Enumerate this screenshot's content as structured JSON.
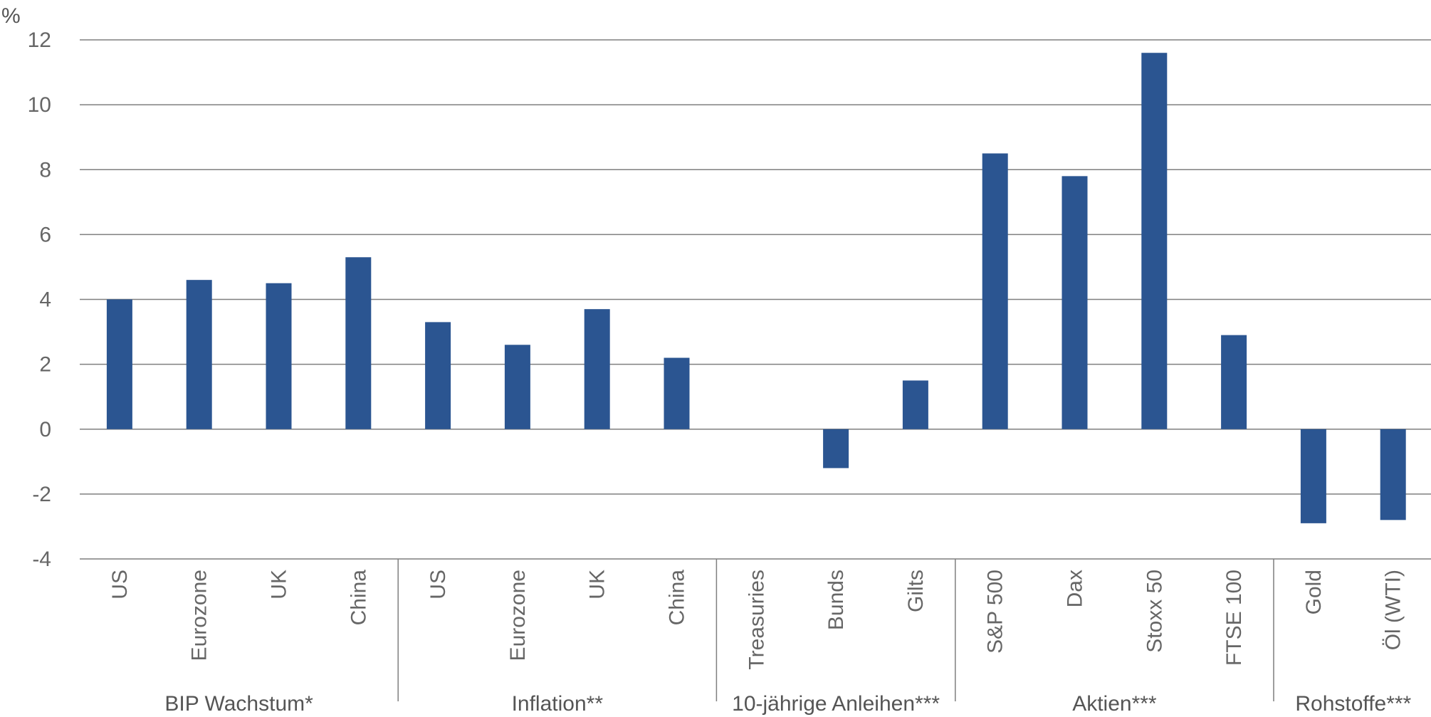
{
  "chart_data": {
    "type": "bar",
    "ylabel": "%",
    "ylim": [
      -4,
      12
    ],
    "yticks": [
      "12",
      "10",
      "8",
      "6",
      "4",
      "2",
      "0",
      "-2",
      "-4"
    ],
    "grid": true,
    "bar_color": "#2b5591",
    "grid_color": "#7f7f7f",
    "groups": [
      {
        "label": "BIP Wachstum*",
        "categories": [
          "US",
          "Eurozone",
          "UK",
          "China"
        ],
        "values": [
          4.0,
          4.6,
          4.5,
          5.3
        ]
      },
      {
        "label": "Inflation**",
        "categories": [
          "US",
          "Eurozone",
          "UK",
          "China"
        ],
        "values": [
          3.3,
          2.6,
          3.7,
          2.2
        ]
      },
      {
        "label": "10-jährige Anleihen***",
        "categories": [
          "Treasuries",
          "Bunds",
          "Gilts"
        ],
        "values": [
          0.0,
          -1.2,
          1.5
        ]
      },
      {
        "label": "Aktien***",
        "categories": [
          "S&P 500",
          "Dax",
          "Stoxx 50",
          "FTSE 100"
        ],
        "values": [
          8.5,
          7.8,
          11.6,
          2.9
        ]
      },
      {
        "label": "Rohstoffe***",
        "categories": [
          "Gold",
          "Öl (WTI)"
        ],
        "values": [
          -2.9,
          -2.8
        ]
      }
    ]
  }
}
